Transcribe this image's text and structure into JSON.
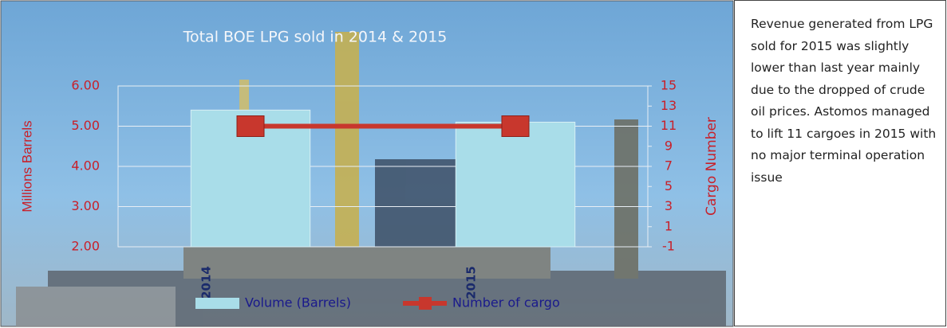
{
  "chart_data": {
    "type": "bar-line",
    "title": "Total BOE LPG sold  in 2014 & 2015",
    "categories": [
      "2014",
      "2015"
    ],
    "series": [
      {
        "name": "Volume (Barrels)",
        "type": "bar",
        "color": "#a9dde9",
        "values": [
          5.4,
          5.1
        ]
      },
      {
        "name": "Number of cargo",
        "type": "line",
        "axis": "y2",
        "color": "#c8372d",
        "values": [
          11,
          11
        ]
      }
    ],
    "ylabel": "Millions Barrels",
    "y2label": "Cargo Number",
    "ylim": [
      2,
      6
    ],
    "yticks": [
      {
        "value": 2,
        "label": "2.00"
      },
      {
        "value": 3,
        "label": "3.00"
      },
      {
        "value": 4,
        "label": "4.00"
      },
      {
        "value": 5,
        "label": "5.00"
      },
      {
        "value": 6,
        "label": "6.00"
      }
    ],
    "y2lim": [
      -1,
      15
    ],
    "y2ticks": [
      -1,
      1,
      3,
      5,
      7,
      9,
      11,
      13,
      15
    ],
    "grid": true,
    "legend": "bottom"
  },
  "note": {
    "text": "Revenue generated from LPG sold for 2015 was slightly lower than last year mainly due to the dropped of crude oil prices. Astomos managed to lift 11 cargoes in 2015 with no major terminal operation issue"
  }
}
